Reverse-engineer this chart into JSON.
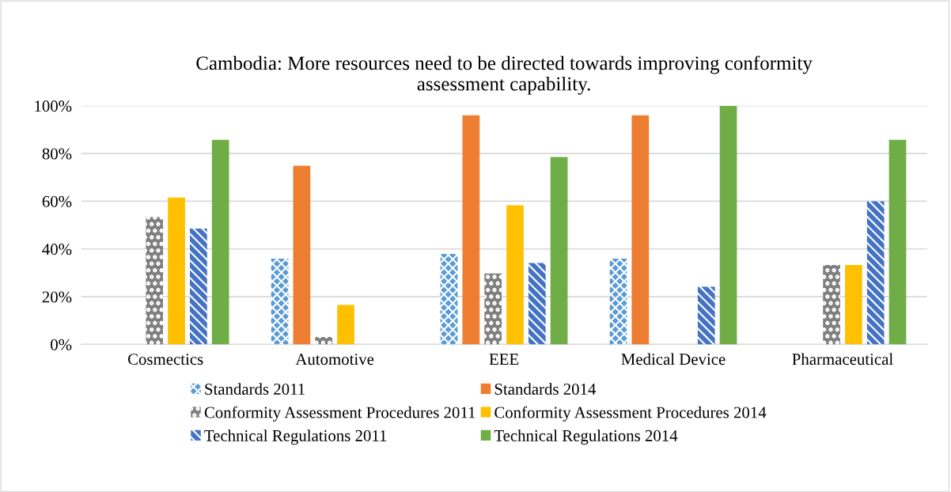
{
  "chart_data": {
    "type": "bar",
    "title": "Cambodia: More resources need to be directed towards improving conformity\nassessment capability.",
    "categories": [
      "Cosmectics",
      "Automotive",
      "EEE",
      "Medical Device",
      "Pharmaceutical"
    ],
    "series": [
      {
        "name": "Standards 2011",
        "color": "#5b9bd5",
        "values": [
          0,
          35.9,
          37.9,
          35.9,
          0
        ]
      },
      {
        "name": "Standards 2014",
        "color": "#ed7d31",
        "values": [
          0,
          74.9,
          96,
          96,
          0
        ]
      },
      {
        "name": "Conformity Assessment Procedures 2011",
        "color": "#7f7f7f",
        "values": [
          53.4,
          3.1,
          29.7,
          0,
          33.3
        ]
      },
      {
        "name": "Conformity Assessment Procedures 2014",
        "color": "#ffc000",
        "values": [
          61.5,
          16.5,
          58.3,
          0,
          33.3
        ]
      },
      {
        "name": "Technical Regulations 2011",
        "color": "#4472c4",
        "values": [
          48.5,
          0,
          34.1,
          24.2,
          60
        ]
      },
      {
        "name": "Technical Regulations 2014",
        "color": "#70ad47",
        "values": [
          85.7,
          0,
          78.5,
          100,
          85.7
        ]
      }
    ],
    "ylim": [
      0,
      100
    ],
    "yticks": [
      {
        "value": 0,
        "label": "0%"
      },
      {
        "value": 20,
        "label": "20%"
      },
      {
        "value": 40,
        "label": "40%"
      },
      {
        "value": 60,
        "label": "60%"
      },
      {
        "value": 80,
        "label": "80%"
      },
      {
        "value": 100,
        "label": "100%"
      }
    ],
    "grid": "y",
    "legend": "bottom"
  }
}
